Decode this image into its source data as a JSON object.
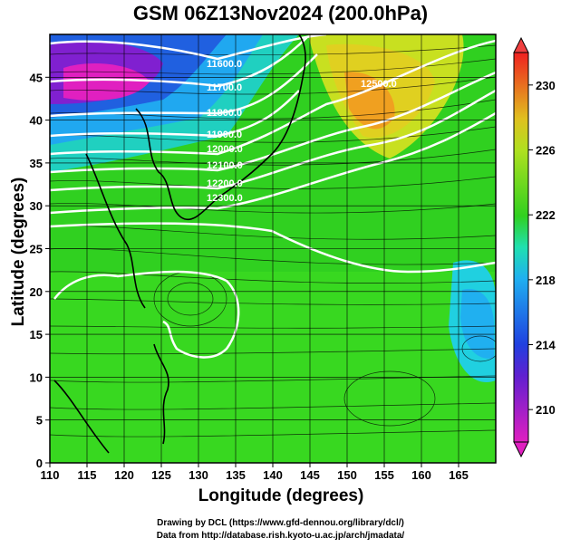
{
  "title": "GSM 06Z13Nov2024 (200.0hPa)",
  "x_axis": {
    "label": "Longitude (degrees)",
    "ticks": [
      "110",
      "115",
      "120",
      "125",
      "130",
      "135",
      "140",
      "145",
      "150",
      "155",
      "160",
      "165"
    ],
    "range": [
      110,
      170
    ]
  },
  "y_axis": {
    "label": "Latitude (degrees)",
    "ticks": [
      "0",
      "5",
      "10",
      "15",
      "20",
      "25",
      "30",
      "35",
      "40",
      "45"
    ],
    "range": [
      0,
      50
    ]
  },
  "colorbar": {
    "ticks": [
      "210",
      "214",
      "218",
      "222",
      "226",
      "230"
    ],
    "range": [
      208,
      232
    ],
    "unit_note": ""
  },
  "contours": [
    {
      "label": "11600.0"
    },
    {
      "label": "11700.0"
    },
    {
      "label": "11800.0"
    },
    {
      "label": "11900.0"
    },
    {
      "label": "12000.0"
    },
    {
      "label": "12100.0"
    },
    {
      "label": "12200.0"
    },
    {
      "label": "12300.0"
    },
    {
      "label": "12500.0"
    }
  ],
  "credits": {
    "line1": "Drawing by DCL (https://www.gfd-dennou.org/library/dcl/)",
    "line2": "Data from http://database.rish.kyoto-u.ac.jp/arch/jmadata/"
  },
  "colors": {
    "magenta": "#e020c0",
    "blue": "#2040e0",
    "cyan": "#20d0e0",
    "green": "#30d020",
    "yellow": "#e0d020",
    "orange": "#f0a020"
  }
}
